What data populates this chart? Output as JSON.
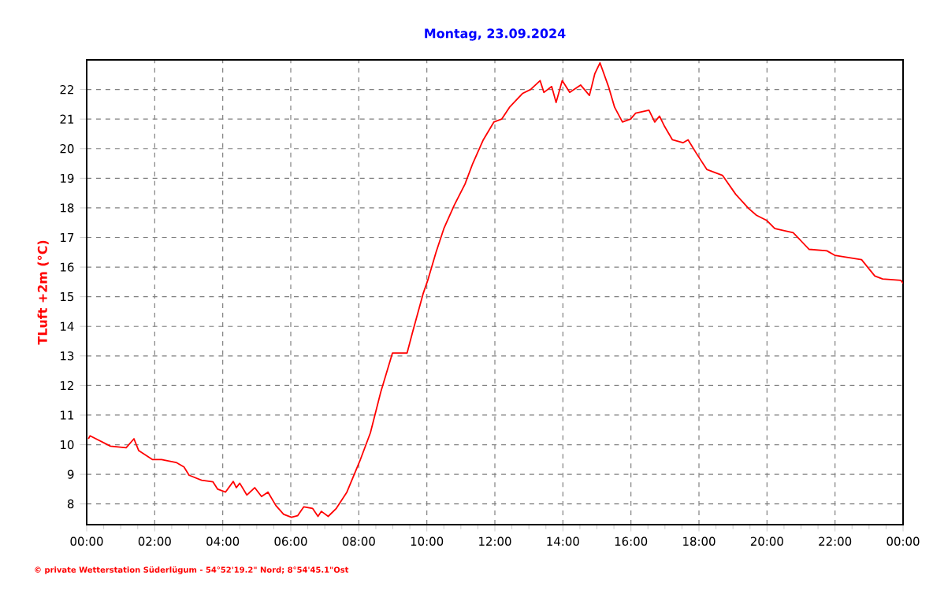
{
  "chart_data": {
    "type": "line",
    "title": "Montag, 23.09.2024",
    "ylabel": "TLuft +2m (°C)",
    "annotations": [
      "© private Wetterstation Süderlügum - 54°52'19.2\" Nord; 8°54'45.1\"Ost"
    ],
    "xlim": [
      0,
      24
    ],
    "xticks": [
      {
        "value": 0,
        "label": "00:00"
      },
      {
        "value": 2,
        "label": "02:00"
      },
      {
        "value": 4,
        "label": "04:00"
      },
      {
        "value": 6,
        "label": "06:00"
      },
      {
        "value": 8,
        "label": "08:00"
      },
      {
        "value": 10,
        "label": "10:00"
      },
      {
        "value": 12,
        "label": "12:00"
      },
      {
        "value": 14,
        "label": "14:00"
      },
      {
        "value": 16,
        "label": "16:00"
      },
      {
        "value": 18,
        "label": "18:00"
      },
      {
        "value": 20,
        "label": "20:00"
      },
      {
        "value": 22,
        "label": "22:00"
      },
      {
        "value": 24,
        "label": "00:00"
      }
    ],
    "ylim": [
      7.3,
      23.0
    ],
    "yticks": [
      8,
      9,
      10,
      11,
      12,
      13,
      14,
      15,
      16,
      17,
      18,
      19,
      20,
      21,
      22
    ],
    "grid": true,
    "marker": "none",
    "line_style": "solid",
    "series": [
      {
        "color": "#ff0000",
        "x": [
          0.05,
          0.1,
          0.7,
          1.16,
          1.39,
          1.53,
          1.93,
          2.2,
          2.63,
          2.86,
          3.01,
          3.38,
          3.71,
          3.85,
          4.08,
          4.31,
          4.4,
          4.5,
          4.71,
          4.94,
          5.14,
          5.33,
          5.56,
          5.79,
          6.02,
          6.2,
          6.38,
          6.64,
          6.8,
          6.9,
          7.1,
          7.34,
          7.65,
          8.03,
          8.34,
          8.65,
          8.99,
          9.42,
          9.58,
          9.89,
          10.04,
          10.27,
          10.5,
          10.81,
          11.12,
          11.35,
          11.66,
          11.97,
          12.2,
          12.43,
          12.82,
          13.05,
          13.33,
          13.44,
          13.67,
          13.8,
          13.98,
          14.2,
          14.52,
          14.78,
          14.94,
          15.09,
          15.34,
          15.52,
          15.75,
          15.99,
          16.14,
          16.53,
          16.7,
          16.84,
          16.99,
          17.22,
          17.53,
          17.68,
          17.92,
          18.23,
          18.69,
          19.08,
          19.46,
          19.69,
          20.0,
          20.23,
          20.77,
          21.24,
          21.76,
          21.99,
          22.78,
          23.17,
          23.4,
          23.94,
          24
        ],
        "values": [
          10.2,
          10.3,
          9.95,
          9.9,
          10.2,
          9.8,
          9.5,
          9.5,
          9.4,
          9.25,
          8.97,
          8.8,
          8.75,
          8.5,
          8.4,
          8.76,
          8.55,
          8.7,
          8.3,
          8.55,
          8.25,
          8.4,
          7.95,
          7.65,
          7.55,
          7.6,
          7.9,
          7.85,
          7.58,
          7.75,
          7.58,
          7.85,
          8.4,
          9.45,
          10.4,
          11.8,
          13.1,
          13.1,
          13.8,
          15.1,
          15.6,
          16.5,
          17.3,
          18.1,
          18.8,
          19.5,
          20.3,
          20.9,
          21.0,
          21.4,
          21.87,
          22.0,
          22.3,
          21.9,
          22.1,
          21.56,
          22.3,
          21.9,
          22.15,
          21.8,
          22.54,
          22.9,
          22.1,
          21.4,
          20.9,
          21.0,
          21.2,
          21.3,
          20.9,
          21.1,
          20.75,
          20.3,
          20.2,
          20.3,
          19.85,
          19.3,
          19.1,
          18.46,
          17.98,
          17.75,
          17.57,
          17.3,
          17.16,
          16.6,
          16.55,
          16.4,
          16.25,
          15.7,
          15.6,
          15.55,
          15.45
        ]
      }
    ]
  }
}
